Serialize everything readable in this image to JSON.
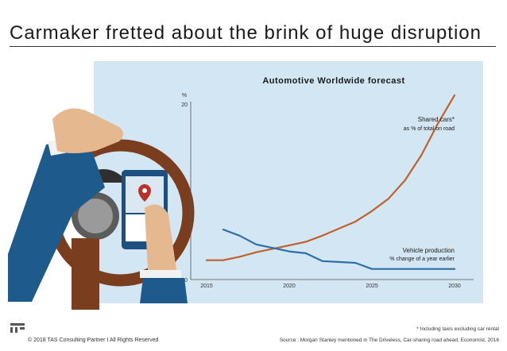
{
  "page_title": "Carmaker fretted about the brink of huge disruption",
  "footer": {
    "copyright": "© 2018 TAS Consulting Partner  I  All Rights Reserved",
    "footnote": "* Including taxis excluding car rental",
    "source": "Source : Morgan Stanley mentioned in The Driveless, Car-sharing road ahead, Economist, 2016"
  },
  "colors": {
    "panel": "#d3e6f3",
    "shared": "#c0612b",
    "vehicle": "#2e6fa6"
  },
  "chart_data": {
    "type": "line",
    "title": "Automotive Worldwide forecast",
    "ylabel": "%",
    "xlim": [
      2015,
      2030
    ],
    "ylim": [
      0,
      20
    ],
    "x_ticks": [
      "2015",
      "2020",
      "2025",
      "2030"
    ],
    "y_ticks": [
      "0",
      "20"
    ],
    "series": [
      {
        "name": "Shared cars*",
        "sublabel": "as % of total on road",
        "color": "#c0612b",
        "x": [
          2015,
          2016,
          2017,
          2018,
          2019,
          2020,
          2021,
          2022,
          2023,
          2024,
          2025,
          2026,
          2027,
          2028,
          2029,
          2030
        ],
        "y": [
          2.2,
          2.2,
          2.6,
          3.1,
          3.5,
          3.9,
          4.3,
          5.0,
          5.8,
          6.6,
          7.8,
          9.2,
          11.3,
          14.2,
          17.8,
          21.0
        ]
      },
      {
        "name": "Vehicle production",
        "sublabel": "% change of a year earlier",
        "color": "#2e6fa6",
        "x": [
          2016,
          2017,
          2018,
          2019,
          2020,
          2021,
          2022,
          2023,
          2024,
          2025,
          2026,
          2027,
          2028,
          2029,
          2030
        ],
        "y": [
          5.7,
          5.0,
          4.0,
          3.6,
          3.2,
          3.0,
          2.1,
          2.0,
          1.9,
          1.2,
          1.2,
          1.2,
          1.2,
          1.2,
          1.2
        ]
      }
    ]
  }
}
